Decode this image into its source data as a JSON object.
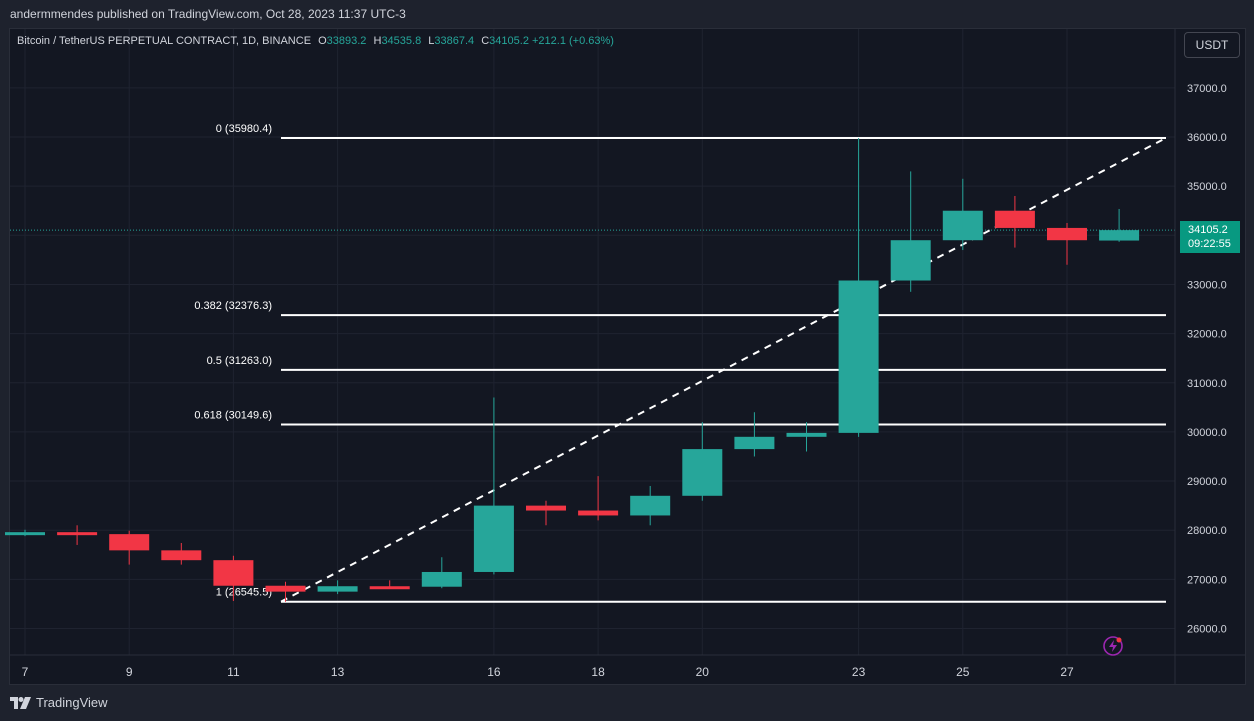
{
  "publisher": {
    "text": "andermmendes published on TradingView.com, Oct 28, 2023 11:37 UTC-3"
  },
  "symbol": {
    "name": "Bitcoin / TetherUS PERPETUAL CONTRACT, 1D, BINANCE",
    "o_label": "O",
    "o_value": "33893.2",
    "h_label": "H",
    "h_value": "34535.8",
    "l_label": "L",
    "l_value": "33867.4",
    "c_label": "C",
    "c_value": "34105.2",
    "change": "+212.1 (+0.63%)"
  },
  "currency_button": "USDT",
  "price_tag": {
    "price": "34105.2",
    "countdown": "09:22:55"
  },
  "footer": {
    "brand": "TradingView"
  },
  "colors": {
    "background": "#131722",
    "up": "#26a69a",
    "down": "#f23645",
    "text": "#d1d4dc",
    "fib_line": "#ffffff",
    "price_tag": "#089981"
  },
  "icons": [
    "tradingview-logo-icon",
    "lightning-alert-icon"
  ],
  "chart_data": {
    "type": "candlestick",
    "title": "",
    "ylim": [
      25700,
      37900
    ],
    "grid": true,
    "x_tick_labels": [
      "7",
      "9",
      "11",
      "13",
      "16",
      "18",
      "20",
      "23",
      "25",
      "27"
    ],
    "y_ticks": [
      26000,
      27000,
      28000,
      29000,
      30000,
      31000,
      32000,
      33000,
      34000,
      35000,
      36000,
      37000
    ],
    "y_tick_labels": [
      "26000.0",
      "27000.0",
      "28000.0",
      "29000.0",
      "30000.0",
      "31000.0",
      "32000.0",
      "33000.0",
      "34000.0",
      "35000.0",
      "36000.0",
      "37000.0"
    ],
    "last_price": 34105.2,
    "candles": [
      {
        "date": "Oct 7",
        "open": 27930,
        "high": 28010,
        "low": 27880,
        "close": 27960
      },
      {
        "date": "Oct 8",
        "open": 27960,
        "high": 28100,
        "low": 27700,
        "close": 27920
      },
      {
        "date": "Oct 9",
        "open": 27920,
        "high": 27990,
        "low": 27300,
        "close": 27590
      },
      {
        "date": "Oct 10",
        "open": 27590,
        "high": 27740,
        "low": 27300,
        "close": 27390
      },
      {
        "date": "Oct 11",
        "open": 27390,
        "high": 27480,
        "low": 26560,
        "close": 26870
      },
      {
        "date": "Oct 12",
        "open": 26870,
        "high": 26950,
        "low": 26545,
        "close": 26750
      },
      {
        "date": "Oct 13",
        "open": 26750,
        "high": 26980,
        "low": 26700,
        "close": 26860
      },
      {
        "date": "Oct 14",
        "open": 26860,
        "high": 26980,
        "low": 26820,
        "close": 26850
      },
      {
        "date": "Oct 15",
        "open": 26850,
        "high": 27450,
        "low": 26820,
        "close": 27150
      },
      {
        "date": "Oct 16",
        "open": 27150,
        "high": 30700,
        "low": 27100,
        "close": 28500
      },
      {
        "date": "Oct 17",
        "open": 28500,
        "high": 28600,
        "low": 28100,
        "close": 28400
      },
      {
        "date": "Oct 18",
        "open": 28400,
        "high": 29100,
        "low": 28200,
        "close": 28300
      },
      {
        "date": "Oct 19",
        "open": 28300,
        "high": 28900,
        "low": 28100,
        "close": 28700
      },
      {
        "date": "Oct 20",
        "open": 28700,
        "high": 30200,
        "low": 28600,
        "close": 29650
      },
      {
        "date": "Oct 21",
        "open": 29650,
        "high": 30400,
        "low": 29500,
        "close": 29900
      },
      {
        "date": "Oct 22",
        "open": 29900,
        "high": 30200,
        "low": 29600,
        "close": 29980
      },
      {
        "date": "Oct 23",
        "open": 29980,
        "high": 35980,
        "low": 29900,
        "close": 33080
      },
      {
        "date": "Oct 24",
        "open": 33080,
        "high": 35300,
        "low": 32850,
        "close": 33900
      },
      {
        "date": "Oct 25",
        "open": 33900,
        "high": 35150,
        "low": 33700,
        "close": 34500
      },
      {
        "date": "Oct 26",
        "open": 34500,
        "high": 34800,
        "low": 33750,
        "close": 34150
      },
      {
        "date": "Oct 27",
        "open": 34150,
        "high": 34250,
        "low": 33400,
        "close": 33900
      },
      {
        "date": "Oct 28",
        "open": 33893.2,
        "high": 34535.8,
        "low": 33867.4,
        "close": 34105.2
      }
    ],
    "fib_levels": [
      {
        "label": "0 (35980.4)",
        "value": 35980.4
      },
      {
        "label": "0.382 (32376.3)",
        "value": 32376.3
      },
      {
        "label": "0.5 (31263.0)",
        "value": 31263.0
      },
      {
        "label": "0.618 (30149.6)",
        "value": 30149.6
      },
      {
        "label": "1 (26545.5)",
        "value": 26545.5
      }
    ],
    "trend_line": {
      "from": {
        "date": "Oct 12",
        "value": 26545.5
      },
      "to": {
        "date": "Oct 29",
        "value": 35980.4
      }
    }
  }
}
